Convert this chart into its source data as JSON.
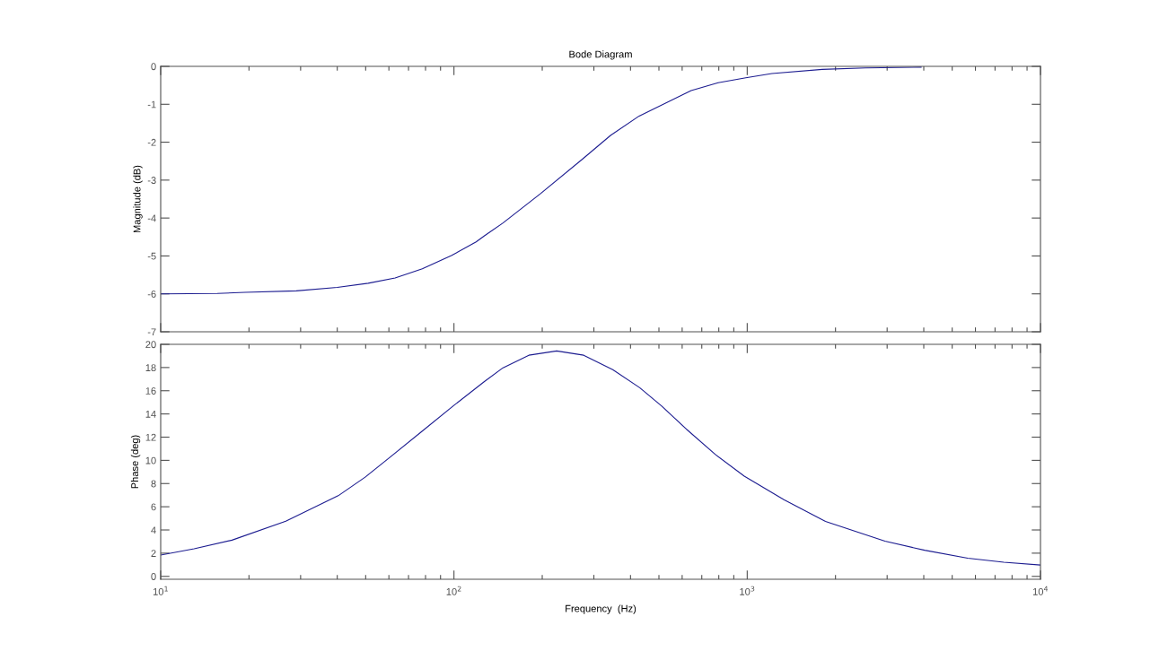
{
  "chart_data": [
    {
      "type": "line",
      "title": "Bode Diagram",
      "ylabel": "Magnitude (dB)",
      "log": "x",
      "xlim": [
        10,
        10000
      ],
      "xticks": [
        {
          "value": 10,
          "label": null
        },
        {
          "value": 100,
          "label": null
        },
        {
          "value": 1000,
          "label": null
        },
        {
          "value": 10000,
          "label": null
        }
      ],
      "ylim": [
        -7,
        0
      ],
      "yticks": [
        -7,
        -6,
        -5,
        -4,
        -3,
        -2,
        -1,
        0
      ],
      "tick_labels": "y",
      "series": [
        {
          "color": "#1c1c90",
          "x": [
            10,
            15.6,
            19.4,
            29,
            40,
            51,
            63,
            78,
            98,
            119,
            127,
            147,
            197,
            273,
            342,
            428,
            644,
            796,
            989,
            1214,
            1803,
            2529,
            3917
          ],
          "values": [
            -6.0,
            -5.99,
            -5.96,
            -5.92,
            -5.83,
            -5.72,
            -5.58,
            -5.34,
            -4.99,
            -4.63,
            -4.47,
            -4.13,
            -3.36,
            -2.46,
            -1.82,
            -1.31,
            -0.64,
            -0.43,
            -0.3,
            -0.19,
            -0.08,
            -0.04,
            -0.02
          ]
        }
      ]
    },
    {
      "type": "line",
      "xlabel": "Frequency  (Hz)",
      "ylabel": "Phase (deg)",
      "log": "x",
      "xlim": [
        10,
        10000
      ],
      "xticks": [
        {
          "value": 10,
          "label": "10$^{1}$"
        },
        {
          "value": 100,
          "label": "10$^{2}$"
        },
        {
          "value": 1000,
          "label": "10$^{3}$"
        },
        {
          "value": 10000,
          "label": "10$^{4}$"
        }
      ],
      "ylim": [
        -0.25,
        20
      ],
      "yticks": [
        0,
        2,
        4,
        6,
        8,
        10,
        12,
        14,
        16,
        18,
        20
      ],
      "series": [
        {
          "color": "#1c1c90",
          "x": [
            10,
            13,
            17.5,
            26.7,
            40.3,
            49.8,
            60.8,
            77.8,
            99.5,
            127,
            147,
            180,
            224,
            277,
            348,
            430,
            510,
            621,
            779,
            977,
            1334,
            1849,
            2950,
            4027,
            5650,
            7500,
            10000
          ],
          "values": [
            1.84,
            2.38,
            3.12,
            4.75,
            6.95,
            8.55,
            10.31,
            12.5,
            14.7,
            16.79,
            17.98,
            19.06,
            19.43,
            19.06,
            17.81,
            16.26,
            14.7,
            12.68,
            10.5,
            8.64,
            6.61,
            4.74,
            3.03,
            2.25,
            1.57,
            1.22,
            0.98
          ]
        }
      ]
    }
  ]
}
